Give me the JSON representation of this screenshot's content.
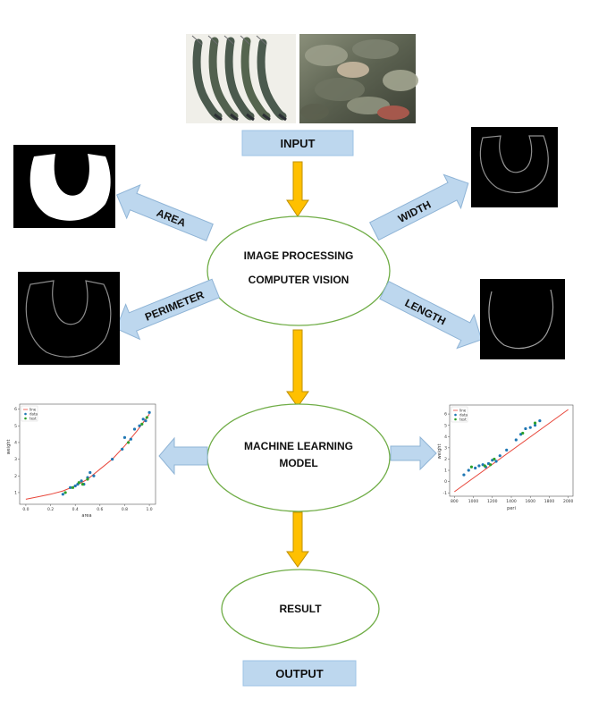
{
  "diagram": {
    "input_label": "INPUT",
    "output_label": "OUTPUT",
    "result_label": "RESULT",
    "processing_lines": [
      "IMAGE PROCESSING",
      "COMPUTER VISION"
    ],
    "ml_lines": [
      "MACHINE LEARNING",
      "MODEL"
    ],
    "feature_labels": {
      "area": "AREA",
      "perimeter": "PERIMETER",
      "width": "WIDTH",
      "length": "LENGTH"
    },
    "colors": {
      "box_fill": "#bdd7ee",
      "box_stroke": "#9dc3e6",
      "ellipse_stroke": "#70ad47",
      "arrow_down": "#ffc000",
      "arrow_down_stroke": "#bf9000",
      "arrow_side": "#bdd7ee",
      "arrow_side_stroke": "#8fb4d6"
    }
  },
  "photos": [
    {
      "name": "shrimp-photo",
      "subject": "shrimp"
    },
    {
      "name": "fish-photo",
      "subject": "tilapia fish"
    }
  ],
  "chart_data": [
    {
      "type": "scatter",
      "xlabel": "area",
      "ylabel": "weight",
      "xlim": [
        -0.05,
        1.05
      ],
      "ylim": [
        0.3,
        6.3
      ],
      "xticks": [
        "0.0",
        "0.2",
        "0.4",
        "0.6",
        "0.8",
        "1.0"
      ],
      "yticks": [
        "1",
        "2",
        "3",
        "4",
        "5",
        "6"
      ],
      "legend": [
        "line",
        "data",
        "test"
      ],
      "legend_position": "top-left",
      "line": {
        "name": "line",
        "x": [
          0.0,
          0.1,
          0.2,
          0.3,
          0.4,
          0.5,
          0.6,
          0.7,
          0.8,
          0.9,
          1.0
        ],
        "y": [
          0.6,
          0.75,
          0.9,
          1.1,
          1.4,
          1.8,
          2.4,
          3.0,
          3.8,
          4.7,
          5.7
        ]
      },
      "series": [
        {
          "name": "data",
          "x": [
            0.3,
            0.36,
            0.4,
            0.42,
            0.45,
            0.47,
            0.5,
            0.52,
            0.55,
            0.7,
            0.78,
            0.8,
            0.85,
            0.88,
            0.92,
            0.95,
            0.97,
            1.0
          ],
          "y": [
            0.9,
            1.3,
            1.4,
            1.5,
            1.7,
            1.5,
            1.9,
            2.2,
            2.0,
            3.0,
            3.6,
            4.3,
            4.2,
            4.8,
            5.0,
            5.4,
            5.3,
            5.8
          ]
        },
        {
          "name": "test",
          "x": [
            0.32,
            0.38,
            0.43,
            0.46,
            0.5,
            0.83,
            0.94,
            0.98
          ],
          "y": [
            1.0,
            1.3,
            1.6,
            1.5,
            1.8,
            4.0,
            5.1,
            5.5
          ]
        }
      ]
    },
    {
      "type": "scatter",
      "xlabel": "peri",
      "ylabel": "weight",
      "xlim": [
        750,
        2050
      ],
      "ylim": [
        -1.3,
        6.8
      ],
      "xticks": [
        "800",
        "1000",
        "1200",
        "1400",
        "1600",
        "1800",
        "2000"
      ],
      "yticks": [
        "-1",
        "0",
        "1",
        "2",
        "3",
        "4",
        "5",
        "6"
      ],
      "legend": [
        "line",
        "data",
        "test"
      ],
      "legend_position": "top-left",
      "line": {
        "name": "line",
        "x": [
          800,
          2000
        ],
        "y": [
          -0.9,
          6.4
        ]
      },
      "series": [
        {
          "name": "data",
          "x": [
            900,
            950,
            1020,
            1060,
            1100,
            1130,
            1160,
            1200,
            1240,
            1280,
            1350,
            1450,
            1500,
            1550,
            1600,
            1650,
            1700
          ],
          "y": [
            0.6,
            1.0,
            1.2,
            1.4,
            1.5,
            1.3,
            1.6,
            1.9,
            1.8,
            2.3,
            2.8,
            3.7,
            4.2,
            4.7,
            4.8,
            5.0,
            5.4
          ]
        },
        {
          "name": "test",
          "x": [
            980,
            1120,
            1180,
            1220,
            1520,
            1650
          ],
          "y": [
            1.3,
            1.4,
            1.5,
            2.0,
            4.3,
            5.2
          ]
        }
      ]
    }
  ]
}
